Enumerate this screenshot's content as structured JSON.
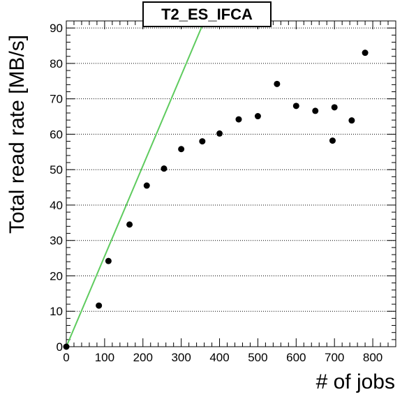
{
  "chart_data": {
    "type": "scatter",
    "title": "T2_ES_IFCA",
    "xlabel": "# of jobs",
    "ylabel": "Total read rate [MB/s]",
    "xlim": [
      0,
      860
    ],
    "ylim": [
      0,
      92
    ],
    "x_ticks": [
      0,
      100,
      200,
      300,
      400,
      500,
      600,
      700,
      800
    ],
    "y_ticks": [
      0,
      10,
      20,
      30,
      40,
      50,
      60,
      70,
      80,
      90
    ],
    "grid": "horizontal-dotted",
    "points": [
      {
        "x": 0,
        "y": 0
      },
      {
        "x": 85,
        "y": 11.6
      },
      {
        "x": 110,
        "y": 24.2
      },
      {
        "x": 165,
        "y": 34.5
      },
      {
        "x": 210,
        "y": 45.5
      },
      {
        "x": 255,
        "y": 50.3
      },
      {
        "x": 300,
        "y": 55.8
      },
      {
        "x": 355,
        "y": 58.0
      },
      {
        "x": 400,
        "y": 60.2
      },
      {
        "x": 450,
        "y": 64.2
      },
      {
        "x": 500,
        "y": 65.1
      },
      {
        "x": 550,
        "y": 74.2
      },
      {
        "x": 600,
        "y": 68.0
      },
      {
        "x": 650,
        "y": 66.6
      },
      {
        "x": 695,
        "y": 58.2
      },
      {
        "x": 700,
        "y": 67.6
      },
      {
        "x": 745,
        "y": 63.9
      },
      {
        "x": 780,
        "y": 83.0
      }
    ],
    "reference_line": {
      "slope": 0.2555,
      "intercept": 0,
      "color": "#5ecb5e"
    },
    "marker_color": "#000000"
  }
}
